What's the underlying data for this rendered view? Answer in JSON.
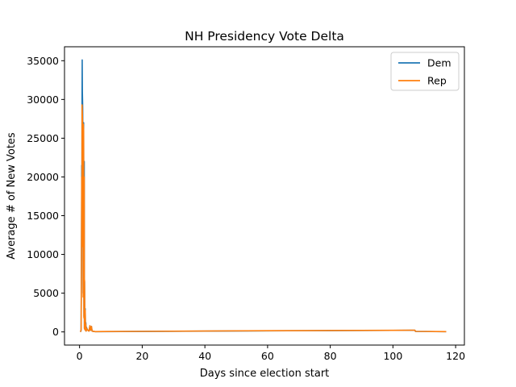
{
  "chart_data": {
    "type": "line",
    "title": "NH Presidency Vote Delta",
    "xlabel": "Days since election start",
    "ylabel": "Average # of New Votes",
    "xlim": [
      -4.8,
      122.8
    ],
    "ylim": [
      -1700,
      36800
    ],
    "xticks": [
      0,
      20,
      40,
      60,
      80,
      100,
      120
    ],
    "yticks": [
      0,
      5000,
      10000,
      15000,
      20000,
      25000,
      30000,
      35000
    ],
    "grid": false,
    "legend_position": "top-right",
    "series": [
      {
        "name": "Dem",
        "color": "#1f77b4",
        "points": [
          [
            0.3,
            0
          ],
          [
            0.5,
            200
          ],
          [
            0.6,
            8500
          ],
          [
            0.7,
            21500
          ],
          [
            0.75,
            12000
          ],
          [
            0.8,
            30000
          ],
          [
            0.85,
            35100
          ],
          [
            0.9,
            31000
          ],
          [
            1.0,
            29000
          ],
          [
            1.1,
            23500
          ],
          [
            1.15,
            5000
          ],
          [
            1.2,
            26500
          ],
          [
            1.3,
            27000
          ],
          [
            1.4,
            2000
          ],
          [
            1.5,
            22000
          ],
          [
            1.55,
            500
          ],
          [
            1.6,
            6500
          ],
          [
            1.7,
            300
          ],
          [
            1.8,
            3000
          ],
          [
            1.9,
            200
          ],
          [
            2.0,
            1200
          ],
          [
            2.1,
            100
          ],
          [
            2.2,
            600
          ],
          [
            2.5,
            300
          ],
          [
            3.0,
            100
          ],
          [
            3.3,
            700
          ],
          [
            3.5,
            200
          ],
          [
            3.8,
            700
          ],
          [
            4.0,
            100
          ],
          [
            5,
            30
          ],
          [
            20,
            60
          ],
          [
            40,
            100
          ],
          [
            60,
            140
          ],
          [
            80,
            170
          ],
          [
            100,
            200
          ],
          [
            107,
            210
          ],
          [
            107.2,
            60
          ],
          [
            117,
            30
          ]
        ]
      },
      {
        "name": "Rep",
        "color": "#ff7f0e",
        "points": [
          [
            0.3,
            0
          ],
          [
            0.5,
            300
          ],
          [
            0.6,
            8000
          ],
          [
            0.7,
            20000
          ],
          [
            0.75,
            11000
          ],
          [
            0.8,
            29300
          ],
          [
            0.9,
            28000
          ],
          [
            1.0,
            26800
          ],
          [
            1.1,
            21000
          ],
          [
            1.15,
            4500
          ],
          [
            1.2,
            26800
          ],
          [
            1.3,
            26000
          ],
          [
            1.4,
            1800
          ],
          [
            1.5,
            20000
          ],
          [
            1.55,
            400
          ],
          [
            1.6,
            6700
          ],
          [
            1.7,
            300
          ],
          [
            1.8,
            2800
          ],
          [
            1.9,
            200
          ],
          [
            2.0,
            1000
          ],
          [
            2.1,
            100
          ],
          [
            2.2,
            500
          ],
          [
            2.5,
            250
          ],
          [
            3.0,
            100
          ],
          [
            3.3,
            800
          ],
          [
            3.5,
            200
          ],
          [
            3.8,
            700
          ],
          [
            4.0,
            100
          ],
          [
            5,
            40
          ],
          [
            20,
            70
          ],
          [
            40,
            110
          ],
          [
            60,
            150
          ],
          [
            80,
            180
          ],
          [
            100,
            210
          ],
          [
            107,
            220
          ],
          [
            107.2,
            70
          ],
          [
            117,
            40
          ]
        ]
      }
    ]
  }
}
